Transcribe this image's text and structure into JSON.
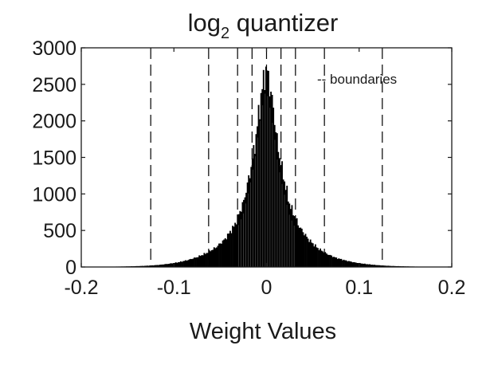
{
  "chart_data": {
    "type": "bar",
    "title": {
      "base": "log",
      "subscript": "2",
      "rest": " quantizer"
    },
    "xlabel": "Weight Values",
    "ylabel": "",
    "xlim": [
      -0.2,
      0.2
    ],
    "ylim": [
      0,
      3000
    ],
    "xticks": [
      -0.2,
      -0.1,
      0,
      0.1,
      0.2
    ],
    "xtick_labels": [
      "-0.2",
      "-0.1",
      "0",
      "0.1",
      "0.2"
    ],
    "yticks": [
      0,
      500,
      1000,
      1500,
      2000,
      2500,
      3000
    ],
    "ytick_labels": [
      "0",
      "500",
      "1000",
      "1500",
      "2000",
      "2500",
      "3000"
    ],
    "grid": false,
    "legend": {
      "label": "-- boundaries",
      "placement": "top-right"
    },
    "series": [
      {
        "kind": "histogram",
        "color": "#000000",
        "x": [
          -0.195,
          -0.185,
          -0.175,
          -0.165,
          -0.155,
          -0.145,
          -0.135,
          -0.125,
          -0.115,
          -0.105,
          -0.095,
          -0.085,
          -0.075,
          -0.065,
          -0.055,
          -0.045,
          -0.035,
          -0.025,
          -0.018,
          -0.012,
          -0.008,
          -0.004,
          -0.001,
          0.001,
          0.004,
          0.008,
          0.012,
          0.018,
          0.025,
          0.035,
          0.045,
          0.055,
          0.065,
          0.075,
          0.085,
          0.095,
          0.105,
          0.115,
          0.125,
          0.135,
          0.145,
          0.155,
          0.165,
          0.175,
          0.185,
          0.195
        ],
        "values": [
          2,
          3,
          4,
          5,
          7,
          10,
          14,
          20,
          30,
          45,
          65,
          95,
          135,
          190,
          265,
          380,
          560,
          880,
          1280,
          1720,
          2150,
          2500,
          2700,
          2650,
          2450,
          2100,
          1650,
          1250,
          850,
          560,
          380,
          260,
          180,
          125,
          90,
          62,
          44,
          30,
          20,
          14,
          10,
          7,
          5,
          4,
          3,
          2
        ]
      },
      {
        "kind": "boundary-lines",
        "style": "dashed",
        "color": "#000000",
        "x": [
          -0.125,
          -0.0625,
          -0.03125,
          -0.015625,
          0,
          0.015625,
          0.03125,
          0.0625,
          0.125
        ]
      }
    ]
  }
}
